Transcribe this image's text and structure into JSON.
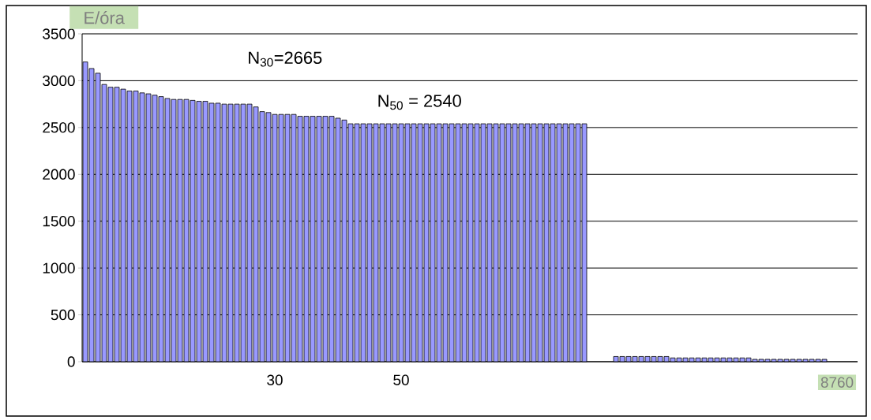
{
  "chart_data": {
    "type": "bar",
    "ylabel": "E/óra",
    "categories": [
      null,
      null,
      null,
      null,
      null,
      null,
      null,
      null,
      null,
      null,
      null,
      null,
      null,
      null,
      null,
      null,
      null,
      null,
      null,
      null,
      null,
      null,
      null,
      null,
      null,
      null,
      null,
      null,
      null,
      null,
      "30",
      null,
      null,
      null,
      null,
      null,
      null,
      null,
      null,
      null,
      null,
      null,
      null,
      null,
      null,
      null,
      null,
      null,
      null,
      null,
      "50",
      null,
      null,
      null,
      null,
      null,
      null,
      null,
      null,
      null,
      null,
      null,
      null,
      null,
      null,
      null,
      null,
      null,
      null,
      null,
      null,
      null,
      null,
      null,
      null,
      null,
      null,
      null,
      null,
      null,
      null,
      null,
      null,
      null,
      null,
      null,
      null,
      null,
      null,
      null,
      null,
      null,
      null,
      null,
      null,
      null,
      null,
      null,
      null,
      null,
      null,
      null,
      null,
      null,
      null,
      null,
      null,
      null,
      null,
      null,
      null,
      null,
      null,
      null,
      null,
      null,
      null,
      null,
      null,
      "8760"
    ],
    "values": [
      3200,
      3130,
      3080,
      2960,
      2930,
      2930,
      2910,
      2890,
      2890,
      2870,
      2860,
      2845,
      2830,
      2810,
      2800,
      2800,
      2800,
      2790,
      2780,
      2780,
      2760,
      2760,
      2750,
      2750,
      2750,
      2750,
      2750,
      2720,
      2670,
      2660,
      2640,
      2640,
      2640,
      2640,
      2620,
      2620,
      2620,
      2620,
      2620,
      2620,
      2600,
      2580,
      2540,
      2540,
      2540,
      2540,
      2540,
      2540,
      2540,
      2540,
      2540,
      2540,
      2540,
      2540,
      2540,
      2540,
      2540,
      2540,
      2540,
      2540,
      2540,
      2540,
      2540,
      2540,
      2540,
      2540,
      2540,
      2540,
      2540,
      2540,
      2540,
      2540,
      2540,
      2540,
      2540,
      2540,
      2540,
      2540,
      2540,
      2540,
      null,
      null,
      null,
      null,
      55,
      55,
      55,
      55,
      55,
      55,
      55,
      55,
      55,
      40,
      40,
      40,
      40,
      40,
      40,
      40,
      40,
      40,
      40,
      40,
      40,
      40,
      25,
      25,
      25,
      25,
      25,
      25,
      25,
      25,
      25,
      25,
      25,
      25,
      null,
      null
    ],
    "color": "#9999ff",
    "ylim": [
      0,
      3500
    ],
    "yticks": [
      0,
      500,
      1000,
      1500,
      2000,
      2500,
      3000,
      3500
    ],
    "grid": "y",
    "annotations": [
      "N$_{30}$=2665",
      "N$_{50}$ = 2540"
    ]
  }
}
